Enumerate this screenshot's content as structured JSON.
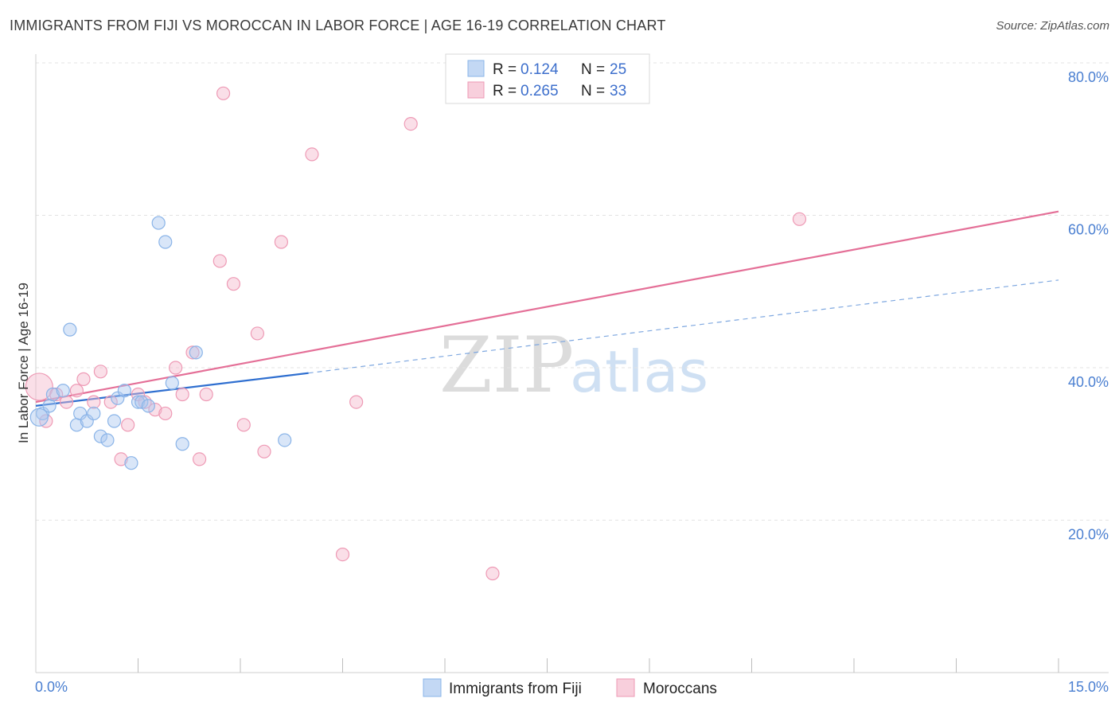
{
  "title": "IMMIGRANTS FROM FIJI VS MOROCCAN IN LABOR FORCE | AGE 16-19 CORRELATION CHART",
  "source": "Source: ZipAtlas.com",
  "watermark": {
    "zip": "ZIP",
    "atlas": "atlas"
  },
  "chart_data": {
    "type": "scatter",
    "xlabel": "",
    "ylabel": "In Labor Force | Age 16-19",
    "xlim": [
      0,
      15
    ],
    "ylim": [
      0,
      80
    ],
    "y_ticks": [
      {
        "value": 20,
        "label": "20.0%"
      },
      {
        "value": 40,
        "label": "40.0%"
      },
      {
        "value": 60,
        "label": "60.0%"
      },
      {
        "value": 80,
        "label": "80.0%"
      }
    ],
    "x_tick_labels": {
      "min": "0.0%",
      "max": "15.0%"
    },
    "x_minor_ticks": [
      1.5,
      3,
      4.5,
      6,
      7.5,
      9,
      10.5,
      12,
      13.5,
      15
    ],
    "legend_stats": [
      {
        "r_label": "R =",
        "r": "0.124",
        "n_label": "N =",
        "n": "25",
        "color": "#a9c8f0"
      },
      {
        "r_label": "R =",
        "r": "0.265",
        "n_label": "N =",
        "n": "33",
        "color": "#f5b8cb"
      }
    ],
    "series": [
      {
        "name": "Immigrants from Fiji",
        "color": "#8ab4e8",
        "fill": "rgba(170,200,240,0.45)",
        "points": [
          [
            0.1,
            34.0
          ],
          [
            0.2,
            35.0
          ],
          [
            0.25,
            36.5
          ],
          [
            0.4,
            37.0
          ],
          [
            0.5,
            45.0
          ],
          [
            0.6,
            32.5
          ],
          [
            0.65,
            34.0
          ],
          [
            0.75,
            33.0
          ],
          [
            0.85,
            34.0
          ],
          [
            0.95,
            31.0
          ],
          [
            1.05,
            30.5
          ],
          [
            1.15,
            33.0
          ],
          [
            1.2,
            36.0
          ],
          [
            1.3,
            37.0
          ],
          [
            1.4,
            27.5
          ],
          [
            1.5,
            35.5
          ],
          [
            1.55,
            35.5
          ],
          [
            1.65,
            35.0
          ],
          [
            1.8,
            59.0
          ],
          [
            1.9,
            56.5
          ],
          [
            2.0,
            38.0
          ],
          [
            2.15,
            30.0
          ],
          [
            2.35,
            42.0
          ],
          [
            3.65,
            30.5
          ],
          [
            0.05,
            33.5
          ]
        ],
        "trend": {
          "x0": 0,
          "y0": 35.0,
          "x1": 4.0,
          "y1": 39.3,
          "x_dash_end": 15,
          "y_dash_end": 51.5
        }
      },
      {
        "name": "Moroccans",
        "color": "#ee9ab5",
        "fill": "rgba(245,184,203,0.45)",
        "points": [
          [
            0.05,
            37.5
          ],
          [
            0.15,
            33.0
          ],
          [
            0.3,
            36.5
          ],
          [
            0.45,
            35.5
          ],
          [
            0.6,
            37.0
          ],
          [
            0.7,
            38.5
          ],
          [
            0.85,
            35.5
          ],
          [
            0.95,
            39.5
          ],
          [
            1.1,
            35.5
          ],
          [
            1.25,
            28.0
          ],
          [
            1.35,
            32.5
          ],
          [
            1.5,
            36.5
          ],
          [
            1.6,
            35.5
          ],
          [
            1.75,
            34.5
          ],
          [
            1.9,
            34.0
          ],
          [
            2.05,
            40.0
          ],
          [
            2.15,
            36.5
          ],
          [
            2.3,
            42.0
          ],
          [
            2.4,
            28.0
          ],
          [
            2.5,
            36.5
          ],
          [
            2.75,
            76.0
          ],
          [
            2.7,
            54.0
          ],
          [
            2.9,
            51.0
          ],
          [
            3.05,
            32.5
          ],
          [
            3.25,
            44.5
          ],
          [
            3.35,
            29.0
          ],
          [
            3.6,
            56.5
          ],
          [
            4.05,
            68.0
          ],
          [
            4.5,
            15.5
          ],
          [
            4.7,
            35.5
          ],
          [
            5.5,
            72.0
          ],
          [
            6.7,
            13.0
          ],
          [
            11.2,
            59.5
          ]
        ],
        "trend": {
          "x0": 0,
          "y0": 35.5,
          "x1": 15,
          "y1": 60.5
        }
      }
    ]
  }
}
